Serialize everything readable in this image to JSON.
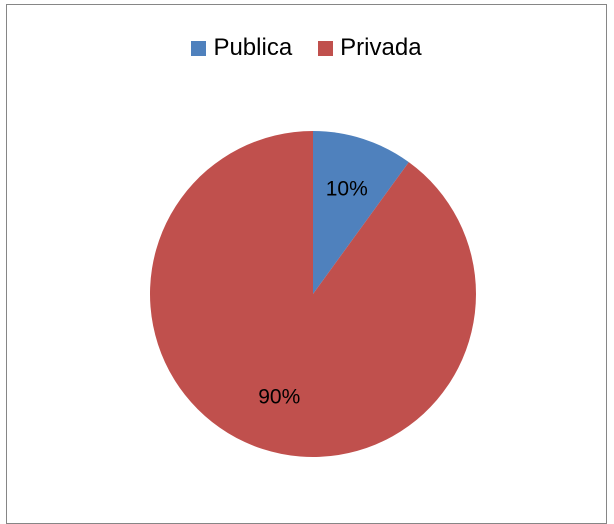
{
  "chart_data": {
    "type": "pie",
    "title": "",
    "categories": [
      "Publica",
      "Privada"
    ],
    "values": [
      10,
      90
    ],
    "value_labels": [
      "10%",
      "90%"
    ],
    "colors": [
      "#4F81BD",
      "#C0504D"
    ],
    "start_angle_deg": 0,
    "direction": "clockwise",
    "legend": {
      "placement": "top",
      "items": [
        {
          "label": "Publica",
          "color": "#4F81BD"
        },
        {
          "label": "Privada",
          "color": "#C0504D"
        }
      ]
    }
  }
}
